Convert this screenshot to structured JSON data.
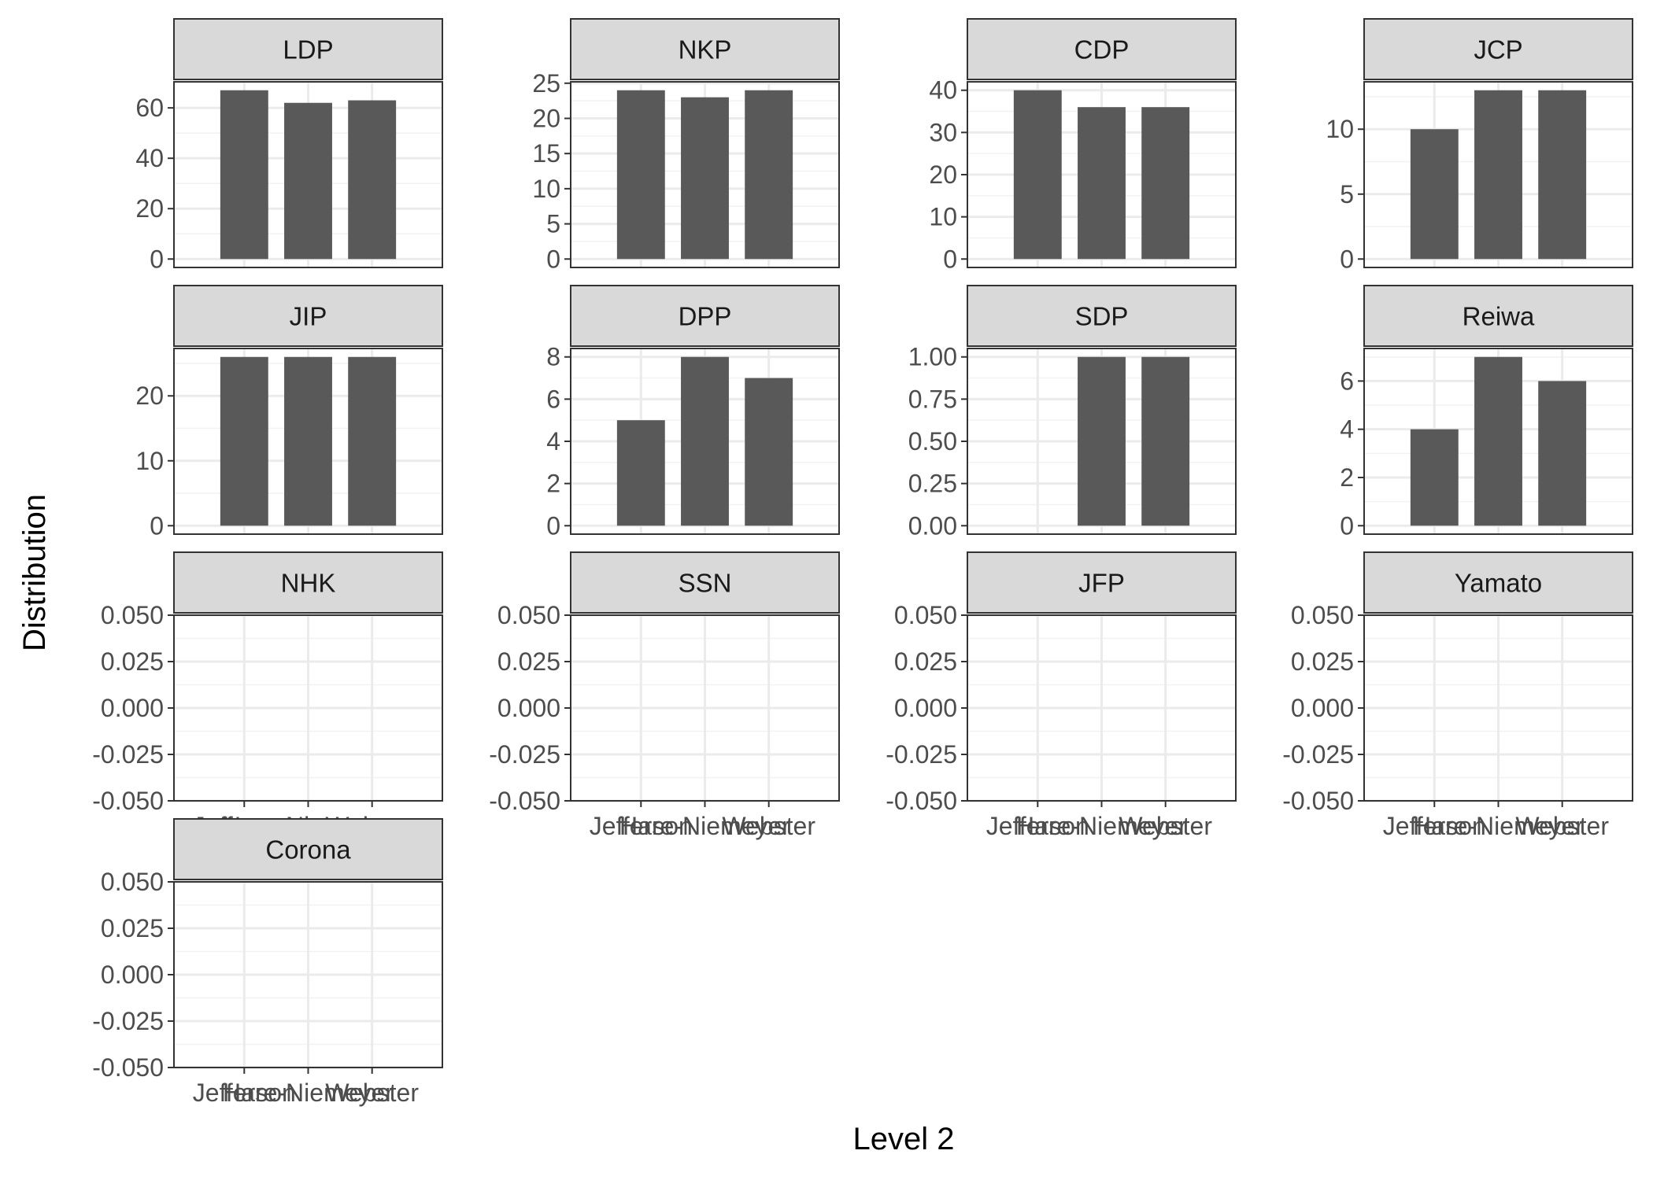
{
  "chart_data": {
    "type": "bar",
    "layout": "facet_wrap",
    "xlabel": "Level 2",
    "ylabel": "Distribution",
    "categories": [
      "Jefferson",
      "Hare-Niemeyer",
      "Webster"
    ],
    "colors": {
      "bar": "#595959",
      "strip_fill": "#d9d9d9",
      "strip_border": "#333333",
      "panel_border": "#333333",
      "grid_major": "#ebebeb",
      "grid_minor": "#f2f2f2"
    },
    "panels": [
      {
        "label": "LDP",
        "values": [
          67,
          62,
          63
        ],
        "ylim": [
          -3.35,
          70.35
        ],
        "yticks": [
          "0",
          "20",
          "40",
          "60"
        ],
        "ytick_values": [
          0,
          20,
          40,
          60
        ]
      },
      {
        "label": "NKP",
        "values": [
          24,
          23,
          24
        ],
        "ylim": [
          -1.2,
          25.2
        ],
        "yticks": [
          "0",
          "5",
          "10",
          "15",
          "20",
          "25"
        ],
        "ytick_values": [
          0,
          5,
          10,
          15,
          20,
          25
        ]
      },
      {
        "label": "CDP",
        "values": [
          40,
          36,
          36
        ],
        "ylim": [
          -2,
          42
        ],
        "yticks": [
          "0",
          "10",
          "20",
          "30",
          "40"
        ],
        "ytick_values": [
          0,
          10,
          20,
          30,
          40
        ]
      },
      {
        "label": "JCP",
        "values": [
          10,
          13,
          13
        ],
        "ylim": [
          -0.65,
          13.65
        ],
        "yticks": [
          "0",
          "5",
          "10"
        ],
        "ytick_values": [
          0,
          5,
          10
        ]
      },
      {
        "label": "JIP",
        "values": [
          26,
          26,
          26
        ],
        "ylim": [
          -1.3,
          27.3
        ],
        "yticks": [
          "0",
          "10",
          "20"
        ],
        "ytick_values": [
          0,
          10,
          20
        ]
      },
      {
        "label": "DPP",
        "values": [
          5,
          8,
          7
        ],
        "ylim": [
          -0.4,
          8.4
        ],
        "yticks": [
          "0",
          "2",
          "4",
          "6",
          "8"
        ],
        "ytick_values": [
          0,
          2,
          4,
          6,
          8
        ]
      },
      {
        "label": "SDP",
        "values": [
          0,
          1,
          1
        ],
        "ylim": [
          -0.05,
          1.05
        ],
        "yticks": [
          "0.00",
          "0.25",
          "0.50",
          "0.75",
          "1.00"
        ],
        "ytick_values": [
          0,
          0.25,
          0.5,
          0.75,
          1
        ]
      },
      {
        "label": "Reiwa",
        "values": [
          4,
          7,
          6
        ],
        "ylim": [
          -0.35,
          7.35
        ],
        "yticks": [
          "0",
          "2",
          "4",
          "6"
        ],
        "ytick_values": [
          0,
          2,
          4,
          6
        ]
      },
      {
        "label": "NHK",
        "values": [
          0,
          0,
          0
        ],
        "ylim": [
          -0.05,
          0.05
        ],
        "yticks": [
          "-0.050",
          "-0.025",
          "0.000",
          "0.025",
          "0.050"
        ],
        "ytick_values": [
          -0.05,
          -0.025,
          0,
          0.025,
          0.05
        ]
      },
      {
        "label": "SSN",
        "values": [
          0,
          0,
          0
        ],
        "ylim": [
          -0.05,
          0.05
        ],
        "yticks": [
          "-0.050",
          "-0.025",
          "0.000",
          "0.025",
          "0.050"
        ],
        "ytick_values": [
          -0.05,
          -0.025,
          0,
          0.025,
          0.05
        ]
      },
      {
        "label": "JFP",
        "values": [
          0,
          0,
          0
        ],
        "ylim": [
          -0.05,
          0.05
        ],
        "yticks": [
          "-0.050",
          "-0.025",
          "0.000",
          "0.025",
          "0.050"
        ],
        "ytick_values": [
          -0.05,
          -0.025,
          0,
          0.025,
          0.05
        ]
      },
      {
        "label": "Yamato",
        "values": [
          0,
          0,
          0
        ],
        "ylim": [
          -0.05,
          0.05
        ],
        "yticks": [
          "-0.050",
          "-0.025",
          "0.000",
          "0.025",
          "0.050"
        ],
        "ytick_values": [
          -0.05,
          -0.025,
          0,
          0.025,
          0.05
        ]
      },
      {
        "label": "Corona",
        "values": [
          0,
          0,
          0
        ],
        "ylim": [
          -0.05,
          0.05
        ],
        "yticks": [
          "-0.050",
          "-0.025",
          "0.000",
          "0.025",
          "0.050"
        ],
        "ytick_values": [
          -0.05,
          -0.025,
          0,
          0.025,
          0.05
        ]
      }
    ],
    "x_axis_shown_on": [
      "NHK",
      "SSN",
      "JFP",
      "Yamato",
      "Corona"
    ]
  }
}
